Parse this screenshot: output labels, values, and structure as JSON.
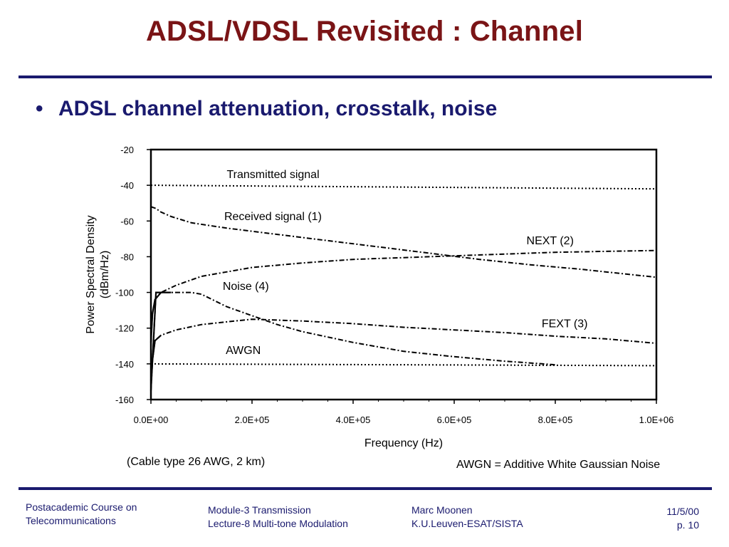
{
  "slide": {
    "title": "ADSL/VDSL Revisited : Channel",
    "bullet": "ADSL channel attenuation, crosstalk, noise"
  },
  "colors": {
    "title": "#7a1416",
    "text": "#1a1a6e",
    "rule": "#1a1a6e",
    "plot": "#000000"
  },
  "chart_data": {
    "type": "line",
    "xlabel": "Frequency (Hz)",
    "ylabel_lines": [
      "Power Spectral Density",
      "(dBm/Hz)"
    ],
    "xlim": [
      0,
      1000000
    ],
    "ylim": [
      -160,
      -20
    ],
    "x_ticks": [
      0,
      200000,
      400000,
      600000,
      800000,
      1000000
    ],
    "x_tick_labels": [
      "0.0E+00",
      "2.0E+05",
      "4.0E+05",
      "6.0E+05",
      "8.0E+05",
      "1.0E+06"
    ],
    "y_ticks": [
      -20,
      -40,
      -60,
      -80,
      -100,
      -120,
      -140,
      -160
    ],
    "y_tick_labels": [
      "-20",
      "-40",
      "-60",
      "-80",
      "-100",
      "-120",
      "-140",
      "-160"
    ],
    "series": [
      {
        "name": "Transmitted signal",
        "style": "dotted",
        "x": [
          0,
          1000000
        ],
        "y": [
          -40,
          -42
        ]
      },
      {
        "name": "Received signal (1)",
        "style": "dashdot",
        "x": [
          0,
          10000,
          20000,
          40000,
          80000,
          150000,
          250000,
          350000,
          450000,
          550000,
          650000,
          750000,
          850000,
          1000000
        ],
        "y": [
          -52,
          -53,
          -55,
          -57.5,
          -61,
          -64,
          -67.5,
          -71,
          -74.5,
          -78,
          -81.5,
          -84.5,
          -87,
          -91.5
        ]
      },
      {
        "name": "NEXT (2)",
        "style": "dashdot",
        "x": [
          0,
          3000,
          8000,
          20000,
          50000,
          100000,
          200000,
          300000,
          400000,
          500000,
          600000,
          700000,
          800000,
          900000,
          1000000
        ],
        "y": [
          -128,
          -112,
          -104,
          -100,
          -96,
          -91,
          -86,
          -83.5,
          -81.5,
          -80.5,
          -79.5,
          -78.5,
          -77.5,
          -77,
          -76.5
        ]
      },
      {
        "name": "FEXT (3)",
        "style": "dashdot",
        "x": [
          0,
          3000,
          8000,
          20000,
          50000,
          100000,
          150000,
          200000,
          300000,
          400000,
          500000,
          600000,
          700000,
          800000,
          900000,
          1000000
        ],
        "y": [
          -149,
          -138,
          -127,
          -124,
          -121,
          -118,
          -116.5,
          -115,
          -116,
          -117.5,
          -119.5,
          -121,
          -122.5,
          -124.5,
          -126,
          -128.5
        ]
      },
      {
        "name": "Noise (4)",
        "style": "dashdot",
        "x": [
          0,
          10000,
          20000,
          40000,
          80000,
          100000,
          150000,
          200000,
          250000,
          300000,
          400000,
          500000,
          600000,
          700000,
          800000
        ],
        "y": [
          -155,
          -100,
          -100,
          -100,
          -100,
          -101,
          -108,
          -113,
          -118,
          -122,
          -128,
          -133,
          -136,
          -138.5,
          -140.5
        ]
      },
      {
        "name": "AWGN",
        "style": "dotted",
        "x": [
          0,
          1000000
        ],
        "y": [
          -140,
          -141
        ]
      }
    ],
    "annotations": [
      {
        "text": "Transmitted signal",
        "x": 150000,
        "y": -36
      },
      {
        "text": "Received signal (1)",
        "x": 145000,
        "y": -59.5
      },
      {
        "text": "NEXT (2)",
        "x": 743000,
        "y": -73
      },
      {
        "text": "Noise (4)",
        "x": 142000,
        "y": -98.5
      },
      {
        "text": "FEXT (3)",
        "x": 773000,
        "y": -119.5
      },
      {
        "text": "AWGN",
        "x": 148000,
        "y": -134.5
      }
    ],
    "notes": [
      "(Cable type 26 AWG, 2 km)",
      "AWGN = Additive White Gaussian Noise"
    ],
    "grid": false
  },
  "footer": {
    "course_line1": "Postacademic Course on",
    "course_line2": "Telecommunications",
    "module_line1": "Module-3  Transmission",
    "module_line2": "Lecture-8  Multi-tone Modulation",
    "author_line1": "Marc Moonen",
    "author_line2": "K.U.Leuven-ESAT/SISTA",
    "date": "11/5/00",
    "page": "p. 10"
  }
}
